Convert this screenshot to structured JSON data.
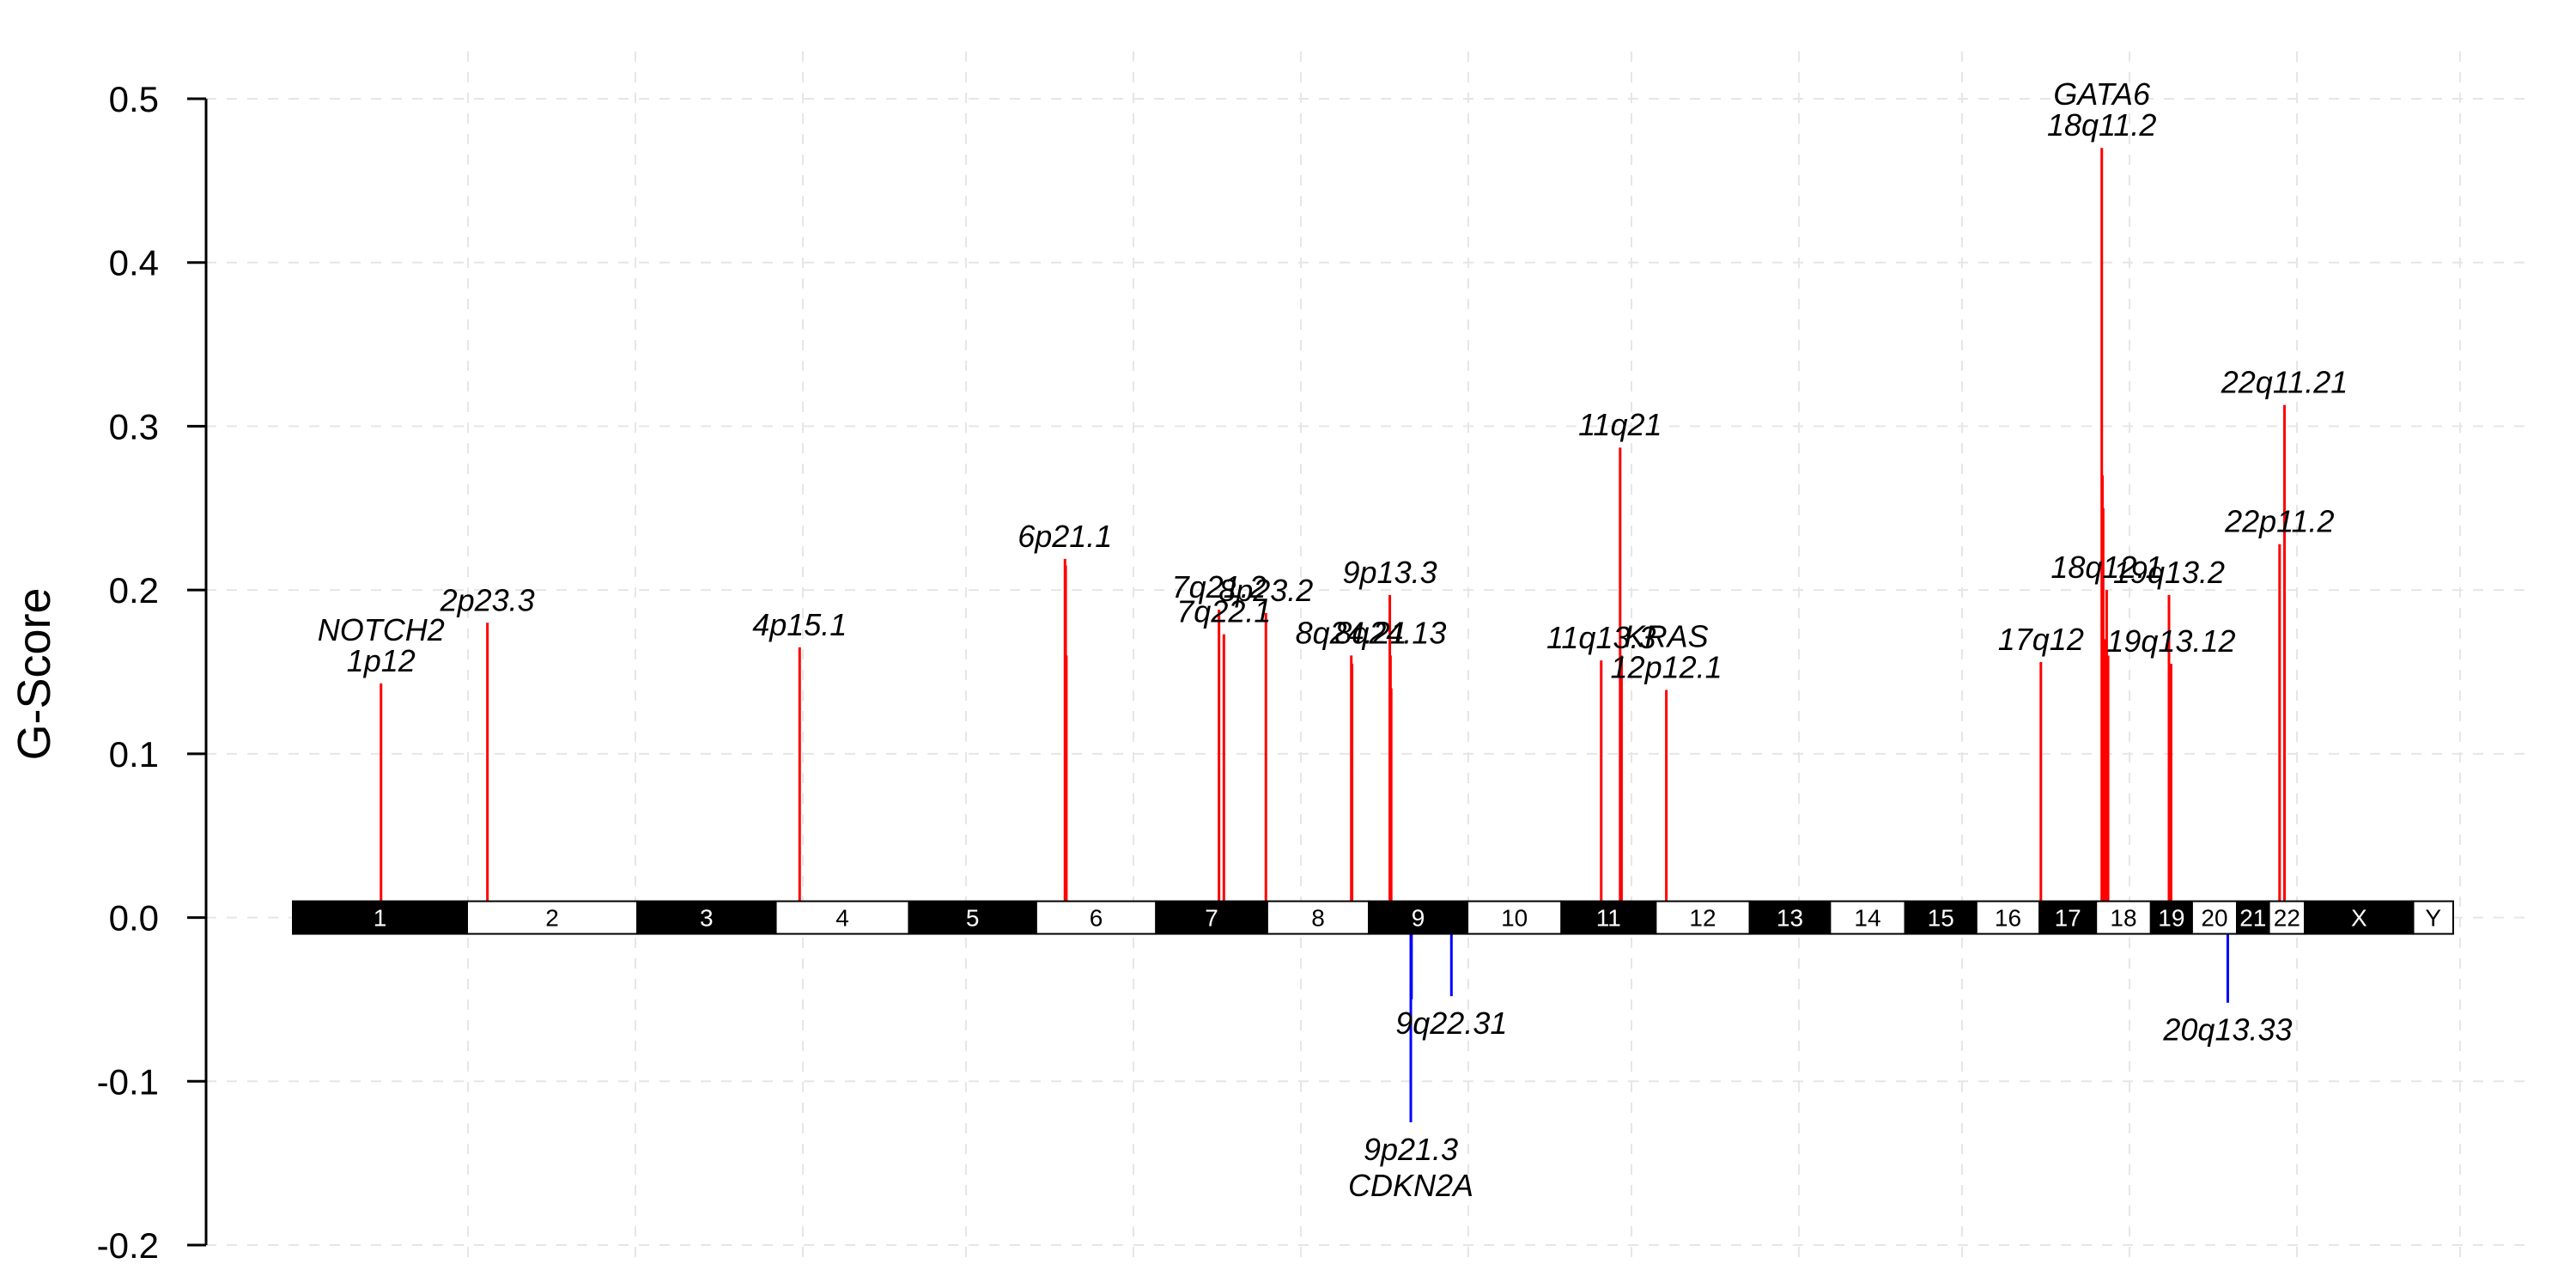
{
  "chart_data": {
    "type": "bar",
    "title": "",
    "xlabel": "",
    "ylabel": "G-Score",
    "ylim": [
      -0.2,
      0.5
    ],
    "yticks": [
      0.5,
      0.4,
      0.3,
      0.2,
      0.1,
      0.0,
      -0.1,
      -0.2
    ],
    "ytick_labels": [
      "0.5",
      "0.4",
      "0.3",
      "0.2",
      "0.1",
      "0.0",
      "-0.1",
      "-0.2"
    ],
    "grid": true,
    "colors": {
      "amplification": "#ff0000",
      "deletion": "#0000ff",
      "ideogram_dark": "#000000",
      "ideogram_light": "#ffffff",
      "grid": "#e6e6e6"
    },
    "chromosomes": [
      {
        "name": "1",
        "start": 0,
        "end": 249
      },
      {
        "name": "2",
        "start": 249,
        "end": 492
      },
      {
        "name": "3",
        "start": 492,
        "end": 690
      },
      {
        "name": "4",
        "start": 690,
        "end": 880
      },
      {
        "name": "5",
        "start": 880,
        "end": 1062
      },
      {
        "name": "6",
        "start": 1062,
        "end": 1233
      },
      {
        "name": "7",
        "start": 1233,
        "end": 1392
      },
      {
        "name": "8",
        "start": 1392,
        "end": 1537
      },
      {
        "name": "9",
        "start": 1537,
        "end": 1678
      },
      {
        "name": "10",
        "start": 1678,
        "end": 1812
      },
      {
        "name": "11",
        "start": 1812,
        "end": 1947
      },
      {
        "name": "12",
        "start": 1947,
        "end": 2081
      },
      {
        "name": "13",
        "start": 2081,
        "end": 2196
      },
      {
        "name": "14",
        "start": 2196,
        "end": 2303
      },
      {
        "name": "15",
        "start": 2303,
        "end": 2405
      },
      {
        "name": "16",
        "start": 2405,
        "end": 2495
      },
      {
        "name": "17",
        "start": 2495,
        "end": 2576
      },
      {
        "name": "18",
        "start": 2576,
        "end": 2654
      },
      {
        "name": "19",
        "start": 2654,
        "end": 2713
      },
      {
        "name": "20",
        "start": 2713,
        "end": 2777
      },
      {
        "name": "21",
        "start": 2777,
        "end": 2823
      },
      {
        "name": "22",
        "start": 2823,
        "end": 2874
      },
      {
        "name": "X",
        "start": 2874,
        "end": 3029
      },
      {
        "name": "Y",
        "start": 3029,
        "end": 3086
      }
    ],
    "amplifications": [
      {
        "pos": 126,
        "g": 0.143,
        "labels": [
          "NOTCH2",
          "1p12"
        ]
      },
      {
        "pos": 278,
        "g": 0.18,
        "labels": [
          "2p23.3"
        ]
      },
      {
        "pos": 724,
        "g": 0.165,
        "labels": [
          "4p15.1"
        ]
      },
      {
        "pos": 1103,
        "g": 0.219,
        "labels": [
          "6p21.1"
        ]
      },
      {
        "pos": 1104,
        "g": 0.215,
        "labels": []
      },
      {
        "pos": 1105,
        "g": 0.16,
        "labels": []
      },
      {
        "pos": 1323,
        "g": 0.188,
        "labels": [
          "7q21.2"
        ]
      },
      {
        "pos": 1330,
        "g": 0.173,
        "labels": [
          "7q22.1"
        ]
      },
      {
        "pos": 1390,
        "g": 0.186,
        "labels": [
          "8p23.2"
        ]
      },
      {
        "pos": 1512,
        "g": 0.16,
        "labels": [
          "8q24.21"
        ]
      },
      {
        "pos": 1513,
        "g": 0.155,
        "labels": []
      },
      {
        "pos": 1567,
        "g": 0.197,
        "labels": [
          "9p13.3"
        ]
      },
      {
        "pos": 1568,
        "g": 0.16,
        "labels": [
          "8q24.13"
        ]
      },
      {
        "pos": 1569,
        "g": 0.14,
        "labels": []
      },
      {
        "pos": 1869,
        "g": 0.157,
        "labels": [
          "11q13.3"
        ]
      },
      {
        "pos": 1896,
        "g": 0.287,
        "labels": [
          "11q21"
        ]
      },
      {
        "pos": 1898,
        "g": 0.16,
        "labels": []
      },
      {
        "pos": 1962,
        "g": 0.139,
        "labels": [
          "KRAS",
          "12p12.1"
        ]
      },
      {
        "pos": 2497,
        "g": 0.156,
        "labels": [
          "17q12"
        ]
      },
      {
        "pos": 2584,
        "g": 0.47,
        "labels": [
          "GATA6",
          "18q11.2"
        ]
      },
      {
        "pos": 2585,
        "g": 0.27,
        "labels": []
      },
      {
        "pos": 2586,
        "g": 0.25,
        "labels": []
      },
      {
        "pos": 2588,
        "g": 0.17,
        "labels": []
      },
      {
        "pos": 2591,
        "g": 0.2,
        "labels": [
          "18q12.1"
        ]
      },
      {
        "pos": 2593,
        "g": 0.16,
        "labels": []
      },
      {
        "pos": 2680,
        "g": 0.197,
        "labels": [
          "19q13.2"
        ]
      },
      {
        "pos": 2683,
        "g": 0.155,
        "labels": [
          "19q13.12"
        ]
      },
      {
        "pos": 2838,
        "g": 0.228,
        "labels": [
          "22p11.2"
        ]
      },
      {
        "pos": 2845,
        "g": 0.313,
        "labels": [
          "22q11.21"
        ]
      }
    ],
    "deletions": [
      {
        "pos": 1597,
        "g": -0.125,
        "labels": [
          "9p21.3",
          "CDKN2A"
        ]
      },
      {
        "pos": 1598,
        "g": -0.05,
        "labels": []
      },
      {
        "pos": 1655,
        "g": -0.048,
        "labels": [
          "9q22.31"
        ]
      },
      {
        "pos": 2764,
        "g": -0.052,
        "labels": [
          "20q13.33"
        ]
      }
    ]
  }
}
